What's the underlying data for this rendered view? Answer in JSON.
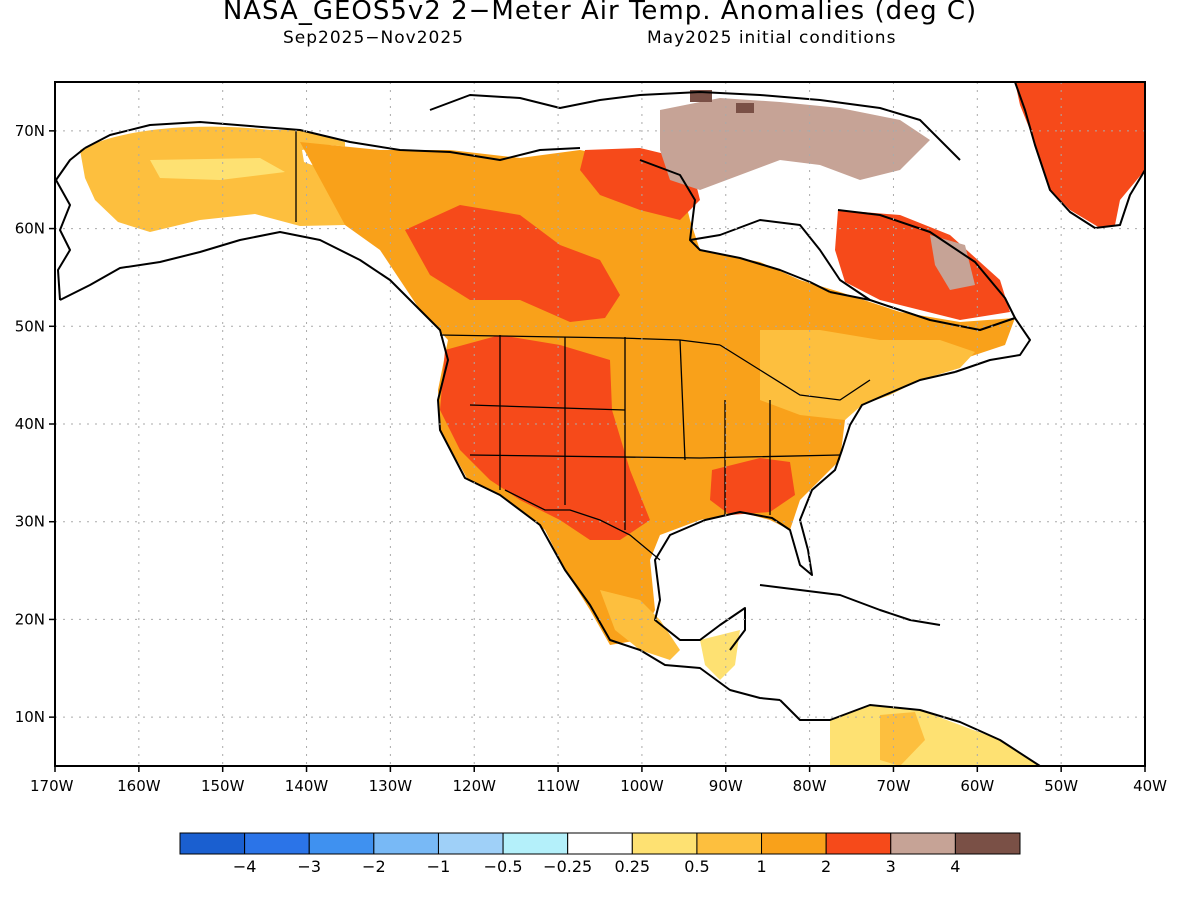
{
  "header": {
    "title": "NASA_GEOS5v2 2−Meter Air Temp. Anomalies (deg C)",
    "period": "Sep2025−Nov2025",
    "init": "May2025 initial conditions"
  },
  "map": {
    "lon_range": [
      -170,
      -40
    ],
    "lat_range": [
      5,
      75
    ],
    "lon_ticks": [
      {
        "value": -170,
        "label": "170W"
      },
      {
        "value": -160,
        "label": "160W"
      },
      {
        "value": -150,
        "label": "150W"
      },
      {
        "value": -140,
        "label": "140W"
      },
      {
        "value": -130,
        "label": "130W"
      },
      {
        "value": -120,
        "label": "120W"
      },
      {
        "value": -110,
        "label": "110W"
      },
      {
        "value": -100,
        "label": "100W"
      },
      {
        "value": -90,
        "label": "90W"
      },
      {
        "value": -80,
        "label": "80W"
      },
      {
        "value": -70,
        "label": "70W"
      },
      {
        "value": -60,
        "label": "60W"
      },
      {
        "value": -50,
        "label": "50W"
      },
      {
        "value": -40,
        "label": "40W"
      }
    ],
    "lat_ticks": [
      {
        "value": 10,
        "label": "10N"
      },
      {
        "value": 20,
        "label": "20N"
      },
      {
        "value": 30,
        "label": "30N"
      },
      {
        "value": 40,
        "label": "40N"
      },
      {
        "value": 50,
        "label": "50N"
      },
      {
        "value": 60,
        "label": "60N"
      },
      {
        "value": 70,
        "label": "70N"
      }
    ],
    "grid": "dotted"
  },
  "colorbar": {
    "colors": [
      "#1a5fd0",
      "#2b74e8",
      "#3f91f0",
      "#78b9f6",
      "#9fd0f8",
      "#b4f0fa",
      "#ffffff",
      "#fee172",
      "#fdbf3e",
      "#f9a11a",
      "#f64a1a",
      "#c6a396",
      "#7a5046"
    ],
    "labels": [
      "−4",
      "−3",
      "−2",
      "−1",
      "−0.5",
      "−0.25",
      "0.25",
      "0.5",
      "1",
      "2",
      "3",
      "4"
    ]
  }
}
